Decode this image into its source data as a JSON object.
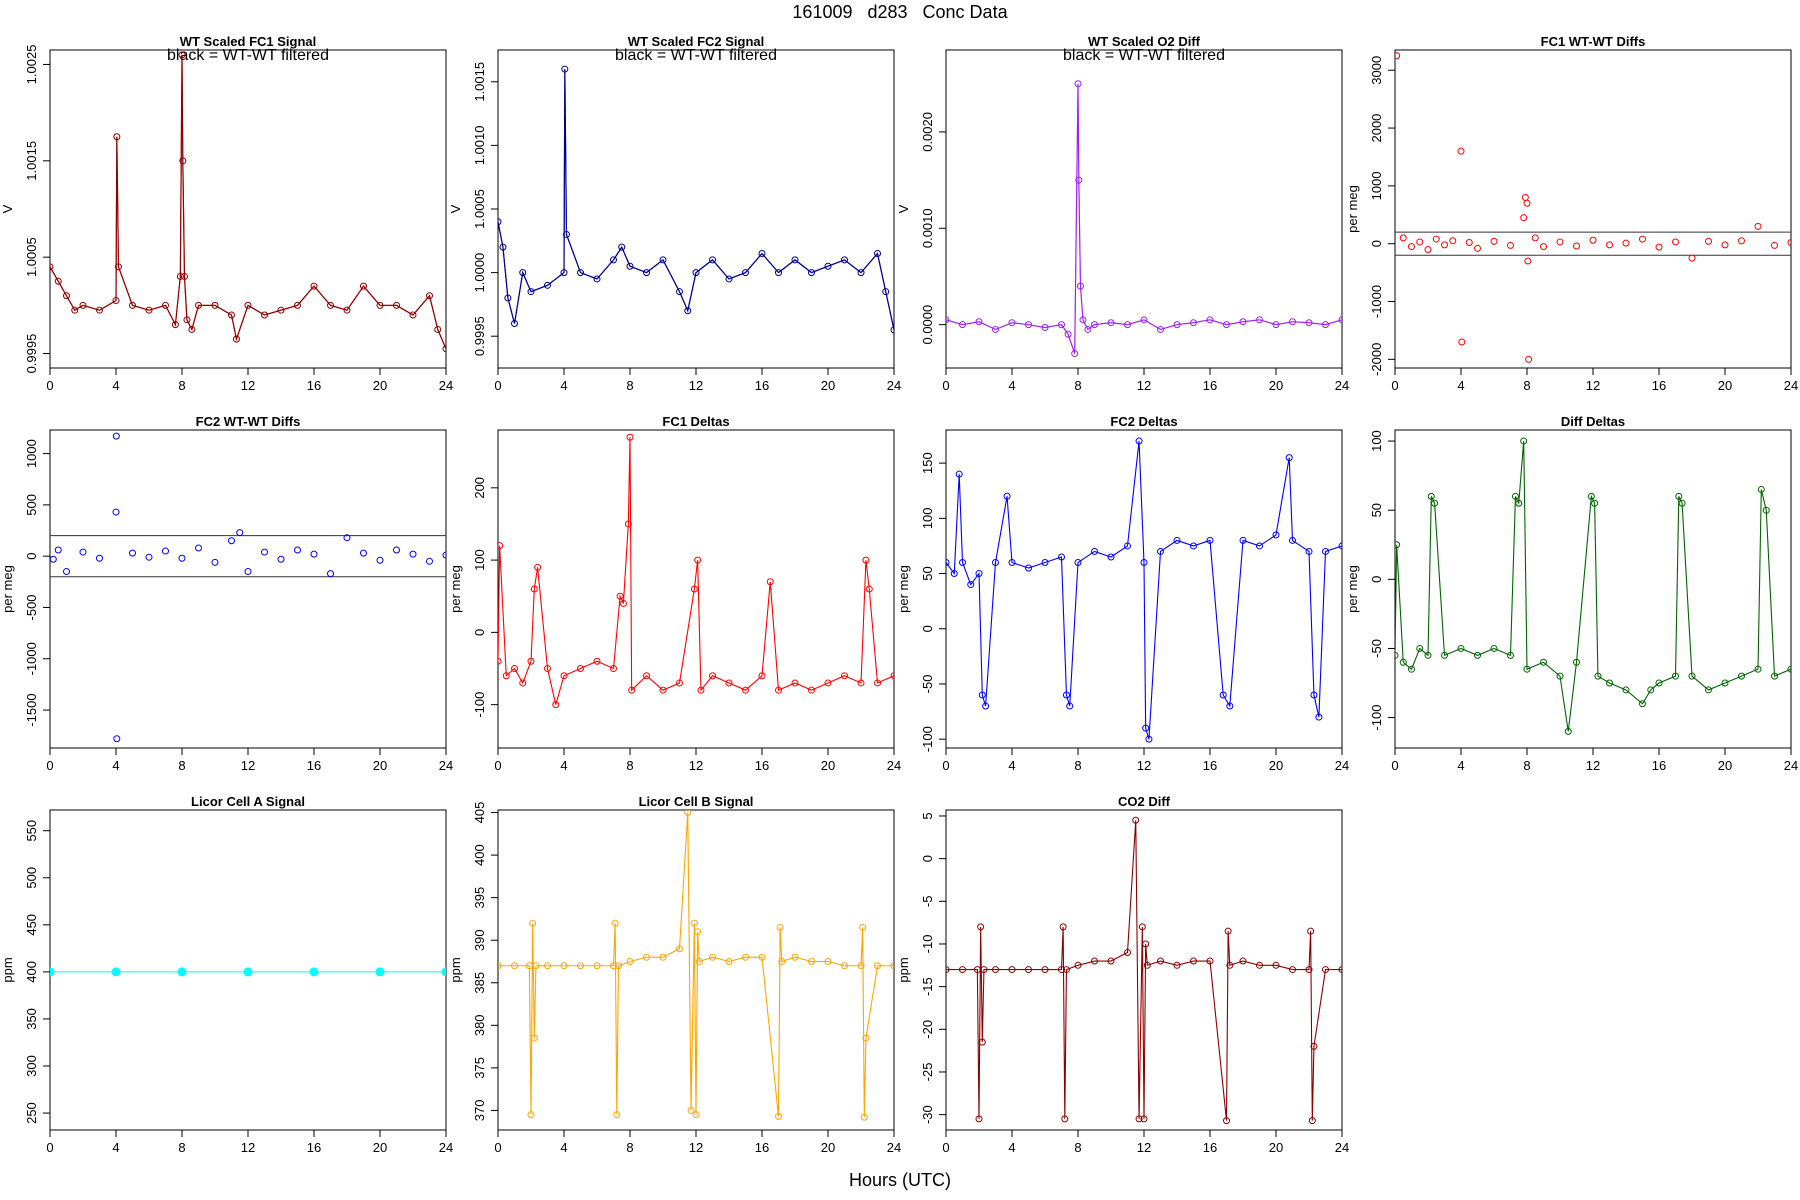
{
  "page": {
    "title": "161009   d283   Conc Data",
    "xlabel": "Hours (UTC)"
  },
  "chart_data": [
    {
      "type": "line",
      "title": "WT Scaled FC1 Signal",
      "subtitle": "black = WT-WT filtered",
      "ylabel": "V",
      "xlim": [
        0,
        24
      ],
      "ylim": [
        0.99935,
        1.00265
      ],
      "xticks": [
        0,
        4,
        8,
        12,
        16,
        20,
        24
      ],
      "yticks": [
        0.9995,
        1.0005,
        1.0015,
        1.0025
      ],
      "ytick_labels": [
        "0.9995",
        "1.0005",
        "1.0015",
        "1.0025"
      ],
      "color": "#8B0000",
      "accent_color": "#ff0000",
      "series": [
        {
          "x": [
            0,
            0.5,
            1,
            1.5,
            2,
            3,
            4,
            4.05,
            4.15,
            5,
            6,
            7,
            7.6,
            7.9,
            8.0,
            8.05,
            8.15,
            8.3,
            8.6,
            9,
            10,
            11,
            11.3,
            12,
            13,
            14,
            15,
            16,
            17,
            18,
            19,
            20,
            21,
            22,
            23,
            23.5,
            24
          ],
          "y": [
            1.0004,
            1.00025,
            1.0001,
            0.99995,
            1.0,
            0.99995,
            1.00005,
            1.00175,
            1.0004,
            1.0,
            0.99995,
            1.0,
            0.9998,
            1.0003,
            1.0026,
            1.0015,
            1.0003,
            0.99985,
            0.99975,
            1.0,
            1.0,
            0.9999,
            0.99965,
            1.0,
            0.9999,
            0.99995,
            1.0,
            1.0002,
            1.0,
            0.99995,
            1.0002,
            1.0,
            1.0,
            0.9999,
            1.0001,
            0.99975,
            0.99955
          ]
        }
      ]
    },
    {
      "type": "line",
      "title": "WT Scaled FC2 Signal",
      "subtitle": "black = WT-WT filtered",
      "ylabel": "V",
      "xlim": [
        0,
        24
      ],
      "ylim": [
        0.99925,
        1.00175
      ],
      "xticks": [
        0,
        4,
        8,
        12,
        16,
        20,
        24
      ],
      "yticks": [
        0.9995,
        1.0,
        1.0005,
        1.001,
        1.0015
      ],
      "ytick_labels": [
        "0.9995",
        "1.0000",
        "1.0005",
        "1.0010",
        "1.0015"
      ],
      "color": "#00008B",
      "accent_color": "#0000ff",
      "series": [
        {
          "x": [
            0,
            0.3,
            0.6,
            1,
            1.5,
            2,
            3,
            4,
            4.05,
            4.15,
            5,
            6,
            7,
            7.5,
            8,
            9,
            10,
            11,
            11.5,
            12,
            13,
            14,
            15,
            16,
            17,
            18,
            19,
            20,
            21,
            22,
            23,
            23.5,
            24
          ],
          "y": [
            1.0004,
            1.0002,
            0.9998,
            0.9996,
            1.0,
            0.99985,
            0.9999,
            1.0,
            1.0016,
            1.0003,
            1.0,
            0.99995,
            1.0001,
            1.0002,
            1.00005,
            1.0,
            1.0001,
            0.99985,
            0.9997,
            1.0,
            1.0001,
            0.99995,
            1.0,
            1.00015,
            1.0,
            1.0001,
            1.0,
            1.00005,
            1.0001,
            1.0,
            1.00015,
            0.99985,
            0.99955
          ]
        }
      ]
    },
    {
      "type": "line",
      "title": "WT Scaled O2 Diff",
      "subtitle": "black = WT-WT filtered",
      "ylabel": "V",
      "xlim": [
        0,
        24
      ],
      "ylim": [
        -0.00045,
        0.00285
      ],
      "xticks": [
        0,
        4,
        8,
        12,
        16,
        20,
        24
      ],
      "yticks": [
        0.0,
        0.001,
        0.002
      ],
      "ytick_labels": [
        "0.0000",
        "0.0010",
        "0.0020"
      ],
      "color": "#A020F0",
      "accent_color": "#ee82ee",
      "series": [
        {
          "x": [
            0,
            1,
            2,
            3,
            4,
            5,
            6,
            7,
            7.4,
            7.8,
            8.0,
            8.05,
            8.15,
            8.3,
            8.6,
            9,
            10,
            11,
            12,
            13,
            14,
            15,
            16,
            17,
            18,
            19,
            20,
            21,
            22,
            23,
            24
          ],
          "y": [
            5e-05,
            0.0,
            3e-05,
            -5e-05,
            2e-05,
            0.0,
            -3e-05,
            0.0,
            -0.0001,
            -0.0003,
            0.0025,
            0.0015,
            0.0004,
            5e-05,
            -5e-05,
            0.0,
            2e-05,
            0.0,
            5e-05,
            -5e-05,
            0.0,
            2e-05,
            5e-05,
            0.0,
            3e-05,
            5e-05,
            0.0,
            3e-05,
            2e-05,
            0.0,
            5e-05
          ]
        }
      ]
    },
    {
      "type": "scatter",
      "title": "FC1 WT-WT Diffs",
      "ylabel": "per meg",
      "xlim": [
        0,
        24
      ],
      "ylim": [
        -2150,
        3350
      ],
      "xticks": [
        0,
        4,
        8,
        12,
        16,
        20,
        24
      ],
      "yticks": [
        -2000,
        -1000,
        0,
        1000,
        2000,
        3000
      ],
      "hlines": [
        200,
        -200
      ],
      "color": "#ff0000",
      "series": [
        {
          "x": [
            0.1,
            0.5,
            1,
            1.5,
            2,
            2.5,
            3,
            3.5,
            4.0,
            4.05,
            4.5,
            5,
            6,
            7,
            7.8,
            7.9,
            8.0,
            8.05,
            8.1,
            8.5,
            9,
            10,
            11,
            12,
            13,
            14,
            15,
            16,
            17,
            18,
            19,
            20,
            21,
            22,
            23,
            24
          ],
          "y": [
            3250,
            100,
            -50,
            30,
            -100,
            80,
            -20,
            50,
            1600,
            -1700,
            20,
            -80,
            40,
            -30,
            450,
            800,
            700,
            -300,
            -2000,
            100,
            -50,
            30,
            -40,
            60,
            -20,
            10,
            80,
            -60,
            30,
            -250,
            40,
            -20,
            50,
            300,
            -30,
            20
          ]
        }
      ]
    },
    {
      "type": "scatter",
      "title": "FC2 WT-WT Diffs",
      "ylabel": "per meg",
      "xlim": [
        0,
        24
      ],
      "ylim": [
        -1870,
        1230
      ],
      "xticks": [
        0,
        4,
        8,
        12,
        16,
        20,
        24
      ],
      "yticks": [
        -1500,
        -1000,
        -500,
        0,
        500,
        1000
      ],
      "hlines": [
        200,
        -200
      ],
      "color": "#0000ff",
      "series": [
        {
          "x": [
            0.2,
            0.5,
            1,
            2,
            3,
            4.0,
            4.02,
            4.05,
            5,
            6,
            7,
            8,
            9,
            10,
            11,
            11.5,
            12,
            13,
            14,
            15,
            16,
            17,
            18,
            19,
            20,
            21,
            22,
            23,
            24
          ],
          "y": [
            -30,
            60,
            -150,
            40,
            -20,
            430,
            1170,
            -1780,
            30,
            -10,
            50,
            -20,
            80,
            -60,
            150,
            230,
            -150,
            40,
            -30,
            60,
            20,
            -170,
            180,
            30,
            -40,
            60,
            20,
            -50,
            10
          ]
        }
      ]
    },
    {
      "type": "line",
      "title": "FC1 Deltas",
      "ylabel": "per meg",
      "xlim": [
        0,
        24
      ],
      "ylim": [
        -160,
        280
      ],
      "xticks": [
        0,
        4,
        8,
        12,
        16,
        20,
        24
      ],
      "yticks": [
        -100,
        0,
        100,
        200
      ],
      "color": "#ff0000",
      "series": [
        {
          "x": [
            0,
            0.1,
            0.5,
            1,
            1.5,
            2,
            2.2,
            2.4,
            3,
            3.5,
            4,
            5,
            6,
            7,
            7.4,
            7.6,
            7.9,
            8.0,
            8.1,
            9,
            10,
            11,
            11.9,
            12.1,
            12.3,
            13,
            14,
            15,
            16,
            16.5,
            17,
            18,
            19,
            20,
            21,
            22,
            22.3,
            22.5,
            23,
            24
          ],
          "y": [
            -40,
            120,
            -60,
            -50,
            -70,
            -40,
            60,
            90,
            -50,
            -100,
            -60,
            -50,
            -40,
            -50,
            50,
            40,
            150,
            270,
            -80,
            -60,
            -80,
            -70,
            60,
            100,
            -80,
            -60,
            -70,
            -80,
            -60,
            70,
            -80,
            -70,
            -80,
            -70,
            -60,
            -70,
            100,
            60,
            -70,
            -60
          ]
        }
      ]
    },
    {
      "type": "line",
      "title": "FC2 Deltas",
      "ylabel": "per meg",
      "xlim": [
        0,
        24
      ],
      "ylim": [
        -108,
        180
      ],
      "xticks": [
        0,
        4,
        8,
        12,
        16,
        20,
        24
      ],
      "yticks": [
        -100,
        -50,
        0,
        50,
        100,
        150
      ],
      "color": "#0000ff",
      "series": [
        {
          "x": [
            0,
            0.5,
            0.8,
            1,
            1.5,
            2,
            2.2,
            2.4,
            3,
            3.7,
            4,
            5,
            6,
            7,
            7.3,
            7.5,
            8,
            9,
            10,
            11,
            11.7,
            12,
            12.1,
            12.3,
            13,
            14,
            15,
            16,
            16.8,
            17.2,
            18,
            19,
            20,
            20.8,
            21,
            22,
            22.3,
            22.6,
            23,
            24
          ],
          "y": [
            60,
            50,
            140,
            60,
            40,
            50,
            -60,
            -70,
            60,
            120,
            60,
            55,
            60,
            65,
            -60,
            -70,
            60,
            70,
            65,
            75,
            170,
            60,
            -90,
            -100,
            70,
            80,
            75,
            80,
            -60,
            -70,
            80,
            75,
            85,
            155,
            80,
            70,
            -60,
            -80,
            70,
            75
          ]
        }
      ]
    },
    {
      "type": "line",
      "title": "Diff Deltas",
      "ylabel": "per meg",
      "xlim": [
        0,
        24
      ],
      "ylim": [
        -122,
        108
      ],
      "xticks": [
        0,
        4,
        8,
        12,
        16,
        20,
        24
      ],
      "yticks": [
        -100,
        -50,
        0,
        50,
        100
      ],
      "color": "#006400",
      "series": [
        {
          "x": [
            0,
            0.1,
            0.5,
            1,
            1.5,
            2,
            2.2,
            2.4,
            3,
            4,
            5,
            6,
            7,
            7.3,
            7.5,
            7.8,
            8,
            9,
            10,
            10.5,
            11,
            11.9,
            12.1,
            12.3,
            13,
            14,
            15,
            15.5,
            16,
            17,
            17.2,
            17.4,
            18,
            19,
            20,
            21,
            22,
            22.2,
            22.5,
            23,
            24
          ],
          "y": [
            -55,
            25,
            -60,
            -65,
            -50,
            -55,
            60,
            55,
            -55,
            -50,
            -55,
            -50,
            -55,
            60,
            55,
            100,
            -65,
            -60,
            -70,
            -110,
            -60,
            60,
            55,
            -70,
            -75,
            -80,
            -90,
            -80,
            -75,
            -70,
            60,
            55,
            -70,
            -80,
            -75,
            -70,
            -65,
            65,
            50,
            -70,
            -65
          ]
        }
      ]
    },
    {
      "type": "line",
      "title": "Licor Cell A Signal",
      "ylabel": "ppm",
      "xlim": [
        0,
        24
      ],
      "ylim": [
        232,
        572
      ],
      "xticks": [
        0,
        4,
        8,
        12,
        16,
        20,
        24
      ],
      "yticks": [
        250,
        300,
        350,
        400,
        450,
        500,
        550
      ],
      "color": "#00ffff",
      "series": [
        {
          "x": [
            0,
            4,
            8,
            12,
            16,
            20,
            24
          ],
          "y": [
            400,
            400,
            400,
            400,
            400,
            400,
            400
          ]
        }
      ]
    },
    {
      "type": "line",
      "title": "Licor Cell B Signal",
      "ylabel": "ppm",
      "xlim": [
        0,
        24
      ],
      "ylim": [
        367.7,
        405.3
      ],
      "xticks": [
        0,
        4,
        8,
        12,
        16,
        20,
        24
      ],
      "yticks": [
        370,
        375,
        380,
        385,
        390,
        395,
        400,
        405
      ],
      "color": "#FFA500",
      "series": [
        {
          "x": [
            0,
            1,
            1.9,
            2.0,
            2.1,
            2.2,
            2.3,
            3,
            4,
            5,
            6,
            7,
            7.1,
            7.2,
            7.3,
            8,
            9,
            10,
            11,
            11.5,
            11.7,
            11.9,
            12.0,
            12.1,
            12.2,
            13,
            14,
            15,
            16,
            17,
            17.1,
            17.2,
            18,
            19,
            20,
            21,
            22,
            22.1,
            22.2,
            22.3,
            23,
            24
          ],
          "y": [
            387,
            387,
            387,
            369.5,
            392,
            378.5,
            387,
            387,
            387,
            387,
            387,
            387,
            392,
            369.5,
            387,
            387.5,
            388,
            388,
            389,
            405,
            370,
            392,
            369.5,
            391,
            387.5,
            388,
            387.5,
            388,
            388,
            369.3,
            391.5,
            387.5,
            388,
            387.5,
            387.5,
            387,
            387,
            391.5,
            369.2,
            378.5,
            387,
            387
          ]
        }
      ]
    },
    {
      "type": "line",
      "title": "CO2 Diff",
      "ylabel": "ppm",
      "xlim": [
        0,
        24
      ],
      "ylim": [
        -31.8,
        5.7
      ],
      "xticks": [
        0,
        4,
        8,
        12,
        16,
        20,
        24
      ],
      "yticks": [
        -30,
        -25,
        -20,
        -15,
        -10,
        -5,
        0,
        5
      ],
      "color": "#8B0000",
      "series": [
        {
          "x": [
            0,
            1,
            1.9,
            2.0,
            2.1,
            2.2,
            2.3,
            3,
            4,
            5,
            6,
            7,
            7.1,
            7.2,
            7.3,
            8,
            9,
            10,
            11,
            11.5,
            11.7,
            11.9,
            12.0,
            12.1,
            12.2,
            13,
            14,
            15,
            16,
            17,
            17.1,
            17.2,
            18,
            19,
            20,
            21,
            22,
            22.1,
            22.2,
            22.3,
            23,
            24
          ],
          "y": [
            -13,
            -13,
            -13,
            -30.5,
            -8,
            -21.5,
            -13,
            -13,
            -13,
            -13,
            -13,
            -13,
            -8,
            -30.5,
            -13,
            -12.5,
            -12,
            -12,
            -11,
            4.5,
            -30.5,
            -8,
            -30.5,
            -10,
            -12.5,
            -12,
            -12.5,
            -12,
            -12,
            -30.7,
            -8.5,
            -12.5,
            -12,
            -12.5,
            -12.5,
            -13,
            -13,
            -8.5,
            -30.7,
            -22,
            -13,
            -13
          ]
        }
      ]
    }
  ]
}
